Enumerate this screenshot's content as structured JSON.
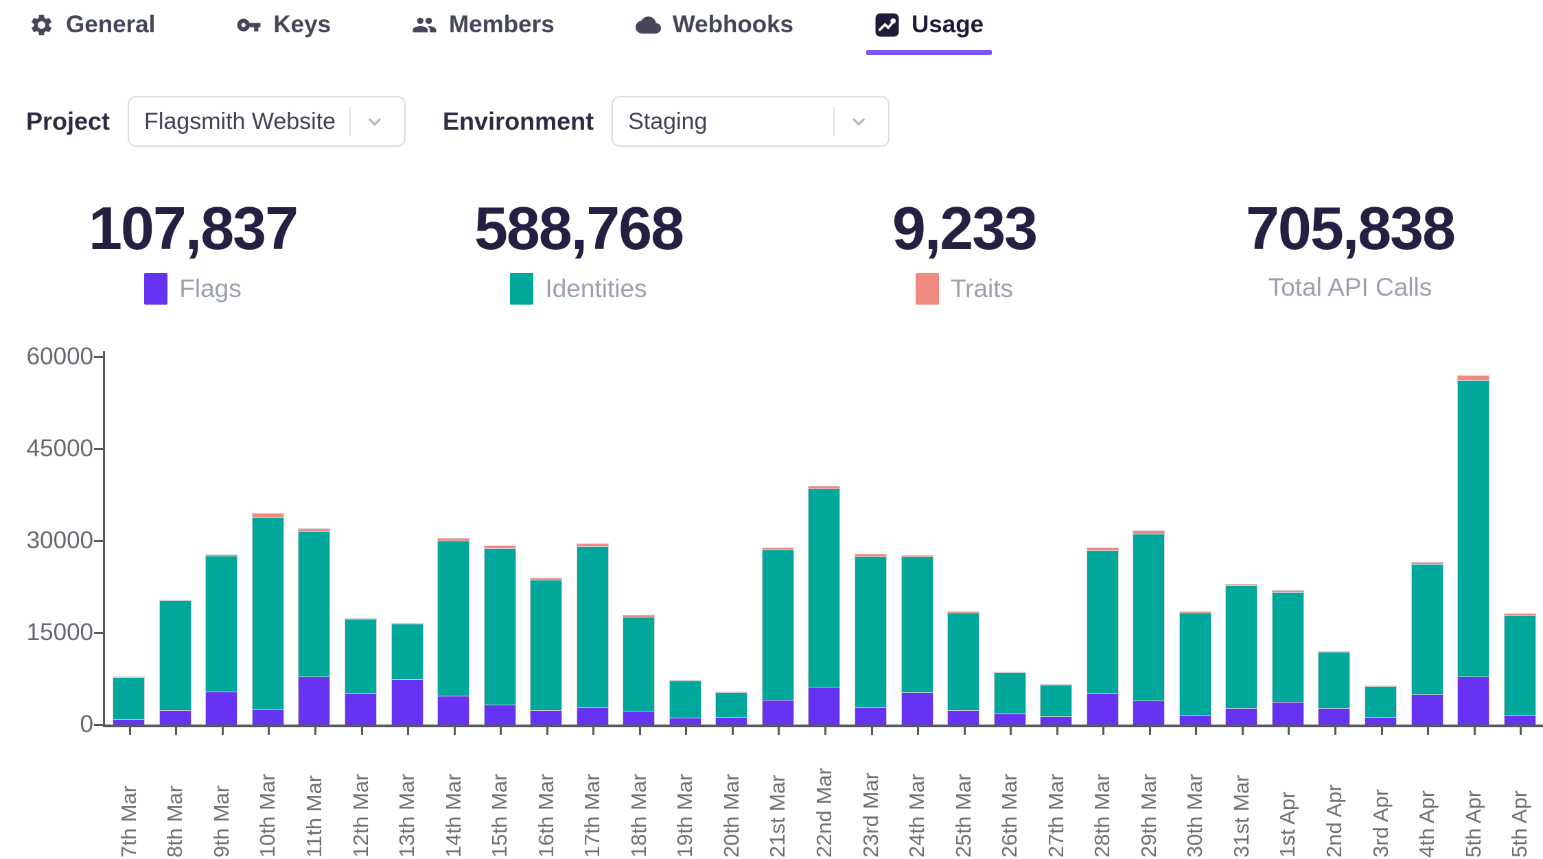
{
  "tabs": {
    "active": "Usage",
    "items": [
      {
        "label": "General",
        "icon": "gear-icon"
      },
      {
        "label": "Keys",
        "icon": "key-icon"
      },
      {
        "label": "Members",
        "icon": "members-icon"
      },
      {
        "label": "Webhooks",
        "icon": "cloud-icon"
      },
      {
        "label": "Usage",
        "icon": "chart-icon"
      }
    ]
  },
  "filters": {
    "project_label": "Project",
    "project_value": "Flagsmith Website",
    "environment_label": "Environment",
    "environment_value": "Staging"
  },
  "stats": [
    {
      "value": "107,837",
      "label": "Flags",
      "color": "#6633f2"
    },
    {
      "value": "588,768",
      "label": "Identities",
      "color": "#00a79b"
    },
    {
      "value": "9,233",
      "label": "Traits",
      "color": "#f0897f"
    },
    {
      "value": "705,838",
      "label": "Total API Calls",
      "color": null
    }
  ],
  "colors": {
    "accent": "#7c57f2",
    "flags": "#6633f2",
    "identities": "#00a79b",
    "traits": "#f0897f"
  },
  "chart_data": {
    "type": "bar",
    "stacked": true,
    "title": "",
    "xlabel": "",
    "ylabel": "",
    "grid": false,
    "ylim": [
      0,
      60000
    ],
    "yticks": [
      0,
      15000,
      30000,
      45000,
      60000
    ],
    "categories": [
      "7th Mar",
      "8th Mar",
      "9th Mar",
      "10th Mar",
      "11th Mar",
      "12th Mar",
      "13th Mar",
      "14th Mar",
      "15th Mar",
      "16th Mar",
      "17th Mar",
      "18th Mar",
      "19th Mar",
      "20th Mar",
      "21st Mar",
      "22nd Mar",
      "23rd Mar",
      "24th Mar",
      "25th Mar",
      "26th Mar",
      "27th Mar",
      "28th Mar",
      "29th Mar",
      "30th Mar",
      "31st Mar",
      "1st Apr",
      "2nd Apr",
      "3rd Apr",
      "4th Apr",
      "5th Apr",
      "5th Apr"
    ],
    "series": [
      {
        "name": "Flags",
        "color": "#6633f2",
        "values": [
          900,
          2400,
          5400,
          2500,
          7800,
          5100,
          7400,
          4700,
          3200,
          2300,
          2800,
          2200,
          1100,
          1200,
          4000,
          6200,
          2800,
          5300,
          2300,
          1800,
          1400,
          5100,
          3900,
          1600,
          2700,
          3700,
          2700,
          1200,
          4900,
          7800,
          1600
        ]
      },
      {
        "name": "Identities",
        "color": "#00a79b",
        "values": [
          6820,
          17850,
          22100,
          31300,
          23800,
          12150,
          9100,
          25350,
          25600,
          21300,
          26350,
          15350,
          6100,
          4020,
          24550,
          32300,
          24650,
          22100,
          15900,
          6720,
          5140,
          23350,
          27250,
          16600,
          20000,
          17950,
          9180,
          5120,
          21250,
          48400,
          16250
        ]
      },
      {
        "name": "Traits",
        "color": "#f0897f",
        "values": [
          80,
          150,
          300,
          700,
          400,
          150,
          100,
          350,
          400,
          400,
          450,
          350,
          100,
          80,
          350,
          500,
          450,
          300,
          300,
          80,
          60,
          450,
          550,
          300,
          300,
          250,
          120,
          80,
          350,
          800,
          250
        ]
      }
    ]
  }
}
